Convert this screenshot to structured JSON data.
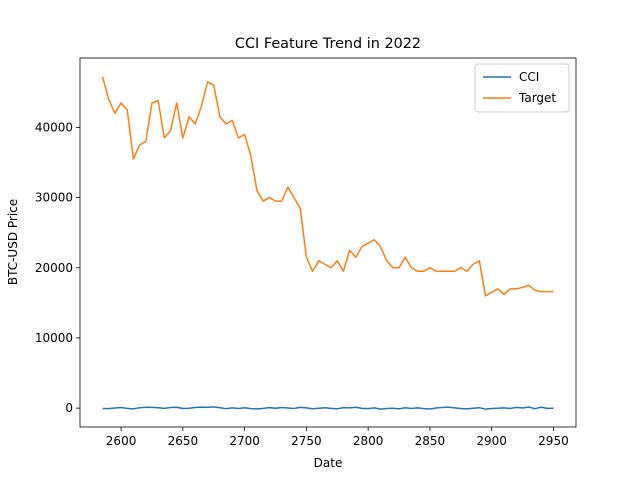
{
  "chart_data": {
    "type": "line",
    "title": "CCI Feature Trend in 2022",
    "xlabel": "Date",
    "ylabel": "BTC-USD Price",
    "x": [
      2585,
      2590,
      2595,
      2600,
      2605,
      2610,
      2615,
      2620,
      2625,
      2630,
      2635,
      2640,
      2645,
      2650,
      2655,
      2660,
      2665,
      2670,
      2675,
      2680,
      2685,
      2690,
      2695,
      2700,
      2705,
      2710,
      2715,
      2720,
      2725,
      2730,
      2735,
      2740,
      2745,
      2750,
      2755,
      2760,
      2765,
      2770,
      2775,
      2780,
      2785,
      2790,
      2795,
      2800,
      2805,
      2810,
      2815,
      2820,
      2825,
      2830,
      2835,
      2840,
      2845,
      2850,
      2855,
      2860,
      2865,
      2870,
      2875,
      2880,
      2885,
      2890,
      2895,
      2900,
      2905,
      2910,
      2915,
      2920,
      2925,
      2930,
      2935,
      2940,
      2945,
      2950
    ],
    "series": [
      {
        "name": "CCI",
        "color": "#1f77b4",
        "values": [
          -50,
          -80,
          20,
          80,
          -30,
          -100,
          50,
          120,
          100,
          60,
          -40,
          80,
          130,
          -60,
          -20,
          90,
          150,
          110,
          170,
          60,
          -80,
          30,
          -50,
          60,
          -70,
          -110,
          -40,
          70,
          -20,
          90,
          10,
          -60,
          110,
          40,
          -90,
          -20,
          60,
          -40,
          -100,
          70,
          30,
          120,
          -40,
          -80,
          40,
          -150,
          -60,
          -10,
          -100,
          60,
          -50,
          30,
          -80,
          -120,
          20,
          90,
          150,
          40,
          -60,
          -100,
          -20,
          60,
          -150,
          -60,
          -20,
          40,
          -50,
          100,
          20,
          150,
          -80,
          120,
          -40,
          -20
        ]
      },
      {
        "name": "Target",
        "color": "#ff7f0e",
        "values": [
          47200,
          44000,
          42000,
          43500,
          42500,
          35500,
          37500,
          38000,
          43500,
          43800,
          38500,
          39500,
          43500,
          38500,
          41500,
          40500,
          43000,
          46500,
          46000,
          41500,
          40500,
          41000,
          38500,
          39000,
          36000,
          31000,
          29500,
          30000,
          29500,
          29500,
          31500,
          30000,
          28500,
          21500,
          19500,
          21000,
          20500,
          20000,
          21000,
          19500,
          22500,
          21500,
          23000,
          23500,
          24000,
          23000,
          21000,
          20000,
          20000,
          21500,
          20000,
          19500,
          19500,
          20000,
          19500,
          19500,
          19500,
          19500,
          20000,
          19500,
          20500,
          21000,
          16000,
          16500,
          17000,
          16200,
          17000,
          17000,
          17200,
          17500,
          16800,
          16600,
          16600,
          16600
        ]
      }
    ],
    "xlim": [
      2566.75,
      2968.25
    ],
    "xticks": [
      2600,
      2650,
      2700,
      2750,
      2800,
      2850,
      2900,
      2950
    ],
    "ylim": [
      -2690,
      49890
    ],
    "yticks": [
      0,
      10000,
      20000,
      30000,
      40000
    ],
    "legend": "upper right"
  }
}
